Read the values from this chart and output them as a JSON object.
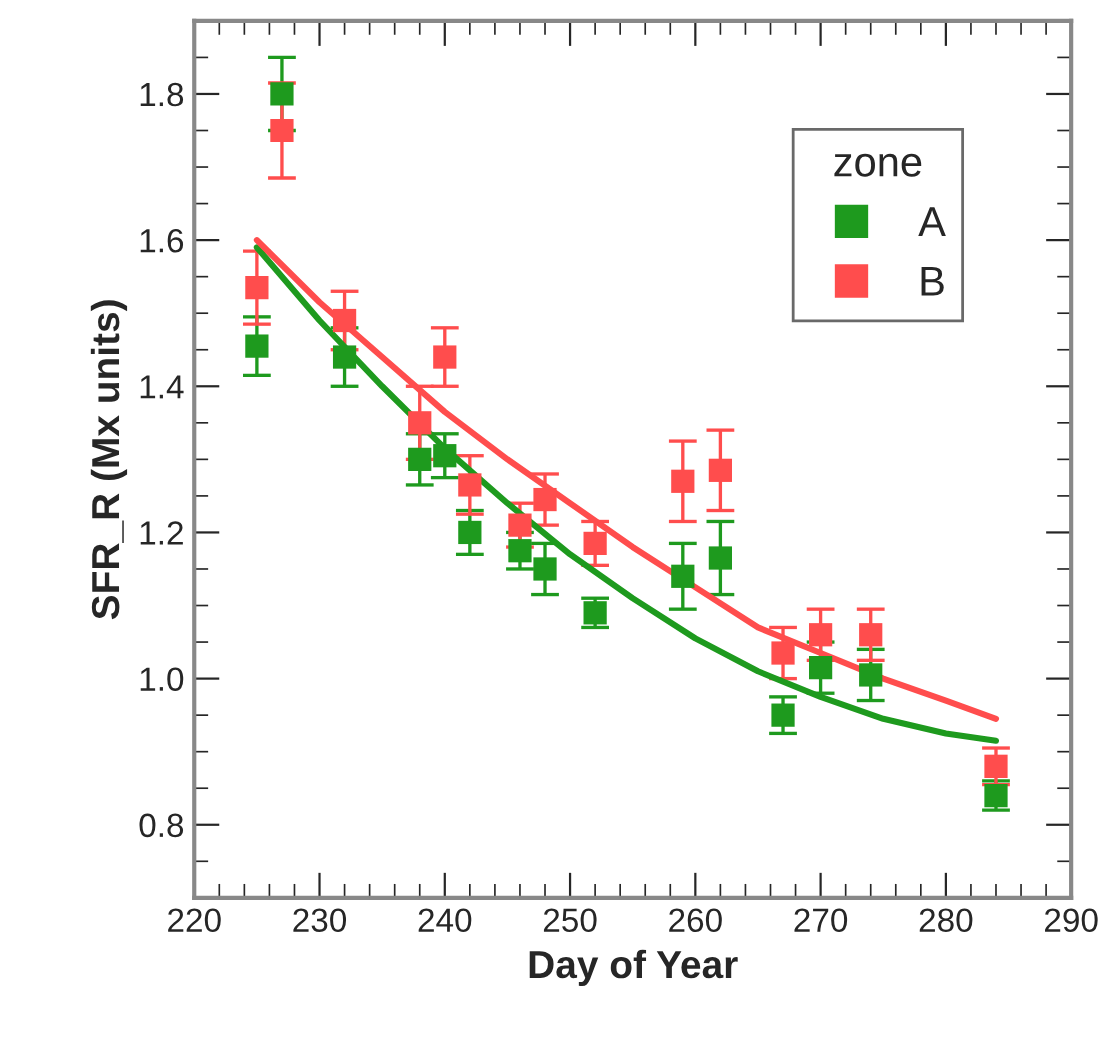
{
  "chart_data": {
    "type": "scatter",
    "xlabel": "Day of Year",
    "ylabel": "SFR_R (Mx units)",
    "legend_title": "zone",
    "legend": "top right",
    "marker": "square",
    "grid": false,
    "xlim": [
      220,
      290
    ],
    "xticks": [
      220,
      230,
      240,
      250,
      260,
      270,
      280,
      290
    ],
    "ylim": [
      0.7,
      1.9
    ],
    "yticks": [
      {
        "value": 0.8,
        "label": "0.8"
      },
      {
        "value": 1.0,
        "label": "1.0"
      },
      {
        "value": 1.2,
        "label": "1.2"
      },
      {
        "value": 1.4,
        "label": "1.4"
      },
      {
        "value": 1.6,
        "label": "1.6"
      },
      {
        "value": 1.8,
        "label": "1.8"
      }
    ],
    "series": [
      {
        "name": "A",
        "color": "#1e9a1e",
        "x": [
          225,
          227,
          232,
          238,
          240,
          242,
          246,
          248,
          252,
          259,
          262,
          267,
          270,
          274,
          284
        ],
        "values": [
          1.455,
          1.8,
          1.44,
          1.3,
          1.305,
          1.2,
          1.175,
          1.15,
          1.09,
          1.14,
          1.165,
          0.95,
          1.015,
          1.005,
          0.84
        ],
        "errors": [
          0.04,
          0.05,
          0.04,
          0.035,
          0.03,
          0.03,
          0.025,
          0.035,
          0.02,
          0.045,
          0.05,
          0.025,
          0.035,
          0.035,
          0.02
        ]
      },
      {
        "name": "B",
        "color": "#ff4d4d",
        "x": [
          225,
          227,
          232,
          238,
          240,
          242,
          246,
          248,
          252,
          259,
          262,
          267,
          270,
          274,
          284
        ],
        "values": [
          1.535,
          1.75,
          1.49,
          1.35,
          1.44,
          1.265,
          1.21,
          1.245,
          1.185,
          1.27,
          1.285,
          1.035,
          1.06,
          1.06,
          0.88
        ],
        "errors": [
          0.05,
          0.065,
          0.04,
          0.05,
          0.04,
          0.04,
          0.03,
          0.035,
          0.03,
          0.055,
          0.055,
          0.035,
          0.035,
          0.035,
          0.025
        ]
      },
      {
        "type": "line",
        "marker": "none",
        "color": "#1e9a1e",
        "x": [
          225,
          230,
          235,
          240,
          245,
          250,
          255,
          260,
          265,
          270,
          275,
          280,
          284
        ],
        "values": [
          1.59,
          1.49,
          1.4,
          1.315,
          1.24,
          1.17,
          1.11,
          1.055,
          1.01,
          0.975,
          0.945,
          0.925,
          0.915
        ]
      },
      {
        "type": "line",
        "marker": "none",
        "color": "#ff4d4d",
        "x": [
          225,
          230,
          235,
          240,
          245,
          250,
          255,
          260,
          265,
          270,
          275,
          280,
          284
        ],
        "values": [
          1.6,
          1.515,
          1.44,
          1.365,
          1.3,
          1.24,
          1.18,
          1.125,
          1.07,
          1.035,
          1.0,
          0.97,
          0.945
        ]
      }
    ]
  }
}
